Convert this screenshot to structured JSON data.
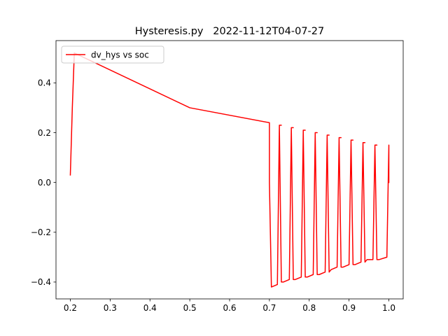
{
  "chart_data": {
    "type": "line",
    "title": "Hysteresis.py   2022-11-12T04-07-27",
    "xlabel": "",
    "ylabel": "",
    "xlim": [
      0.164,
      1.036
    ],
    "ylim": [
      -0.4677,
      0.5697
    ],
    "xticks": [
      0.2,
      0.3,
      0.4,
      0.5,
      0.6,
      0.7,
      0.8,
      0.9,
      1.0
    ],
    "xtick_labels": [
      "0.2",
      "0.3",
      "0.4",
      "0.5",
      "0.6",
      "0.7",
      "0.8",
      "0.9",
      "1.0"
    ],
    "yticks": [
      -0.4,
      -0.2,
      0.0,
      0.2,
      0.4
    ],
    "ytick_labels": [
      "−0.4",
      "−0.2",
      "0.0",
      "0.2",
      "0.4"
    ],
    "grid": false,
    "legend": {
      "placement": "top-left",
      "entries": [
        "dv_hys vs soc"
      ]
    },
    "series": [
      {
        "name": "dv_hys vs soc",
        "color": "#ff0000",
        "x": [
          0.2,
          0.205,
          0.21,
          0.5,
          0.7,
          0.7,
          0.705,
          0.72,
          0.725,
          0.73,
          0.725,
          0.73,
          0.735,
          0.75,
          0.755,
          0.76,
          0.755,
          0.76,
          0.765,
          0.78,
          0.785,
          0.79,
          0.785,
          0.79,
          0.795,
          0.81,
          0.815,
          0.82,
          0.815,
          0.82,
          0.825,
          0.84,
          0.845,
          0.85,
          0.845,
          0.85,
          0.855,
          0.87,
          0.875,
          0.88,
          0.875,
          0.88,
          0.885,
          0.9,
          0.905,
          0.91,
          0.905,
          0.91,
          0.915,
          0.93,
          0.935,
          0.94,
          0.935,
          0.94,
          0.945,
          0.96,
          0.965,
          0.97,
          0.965,
          0.97,
          0.975,
          0.995,
          1.0,
          1.0
        ],
        "y": [
          0.03,
          0.3,
          0.52,
          0.3,
          0.24,
          0.0,
          -0.42,
          -0.41,
          0.23,
          0.23,
          0.23,
          -0.4,
          -0.4,
          -0.39,
          0.22,
          0.22,
          0.22,
          -0.39,
          -0.39,
          -0.38,
          0.21,
          0.21,
          0.21,
          -0.38,
          -0.38,
          -0.37,
          0.2,
          0.2,
          0.2,
          -0.37,
          -0.37,
          -0.36,
          0.19,
          0.19,
          0.19,
          -0.36,
          -0.35,
          -0.34,
          0.18,
          0.18,
          0.18,
          -0.34,
          -0.34,
          -0.33,
          0.17,
          0.17,
          0.17,
          -0.33,
          -0.33,
          -0.32,
          0.16,
          0.16,
          0.16,
          -0.32,
          -0.31,
          -0.31,
          0.15,
          0.15,
          0.15,
          -0.31,
          -0.31,
          -0.3,
          0.15,
          0.0
        ]
      }
    ]
  }
}
